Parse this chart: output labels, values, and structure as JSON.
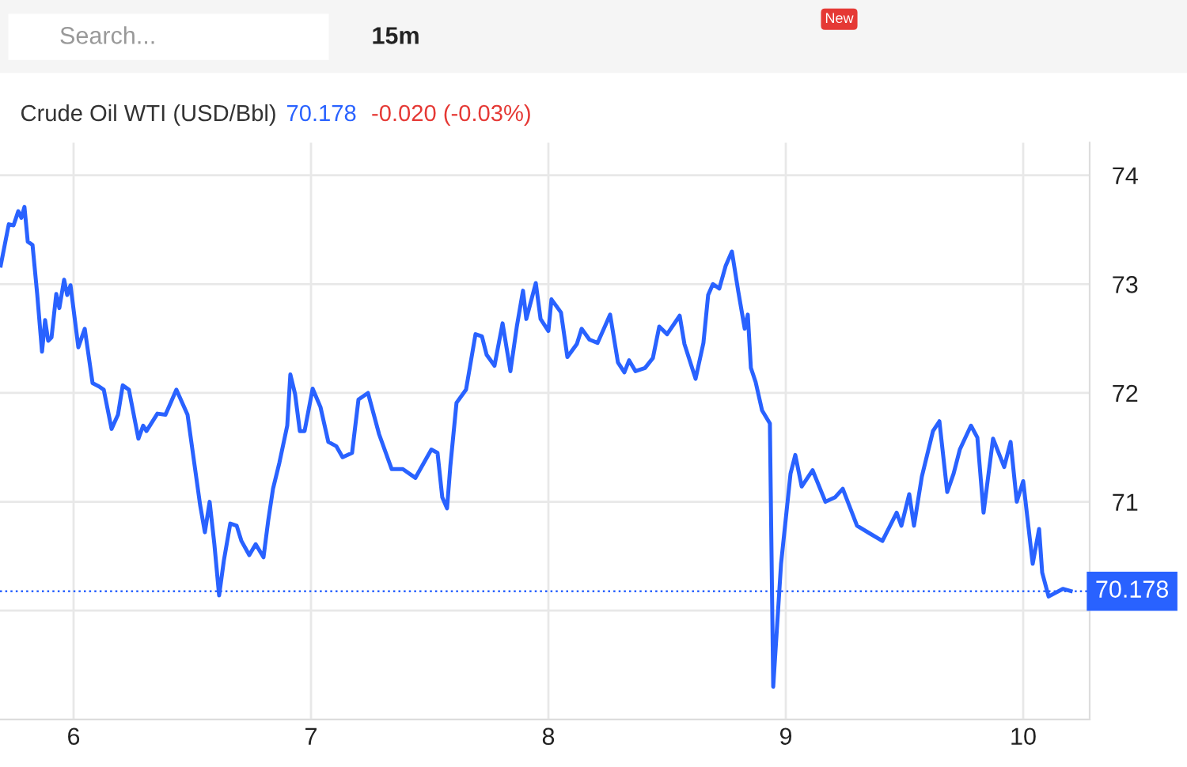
{
  "chart_data": {
    "type": "line",
    "title": "Crude Oil WTI (USD/Bbl)",
    "annotations": [
      "70.178",
      "-0.020 (-0.03%)",
      "Search...",
      "15m",
      "New"
    ],
    "series": [
      {
        "color": "#2962ff",
        "x": [
          5.693,
          5.7,
          5.727,
          5.747,
          5.767,
          5.78,
          5.793,
          5.807,
          5.827,
          5.847,
          5.867,
          5.88,
          5.893,
          5.907,
          5.927,
          5.94,
          5.96,
          5.973,
          5.987,
          6.02,
          6.047,
          6.08,
          6.107,
          6.127,
          6.16,
          6.187,
          6.207,
          6.233,
          6.273,
          6.293,
          6.307,
          6.353,
          6.387,
          6.433,
          6.48,
          6.533,
          6.553,
          6.573,
          6.593,
          6.613,
          6.633,
          6.66,
          6.687,
          6.707,
          6.74,
          6.767,
          6.8,
          6.82,
          6.84,
          6.867,
          6.9,
          6.913,
          6.933,
          6.953,
          6.973,
          7.007,
          7.04,
          7.073,
          7.107,
          7.133,
          7.173,
          7.2,
          7.24,
          7.287,
          7.34,
          7.387,
          7.44,
          7.507,
          7.533,
          7.553,
          7.573,
          7.587,
          7.613,
          7.653,
          7.693,
          7.72,
          7.74,
          7.773,
          7.807,
          7.84,
          7.867,
          7.893,
          7.907,
          7.947,
          7.967,
          8.0,
          8.013,
          8.053,
          8.08,
          8.12,
          8.14,
          8.173,
          8.207,
          8.26,
          8.293,
          8.32,
          8.34,
          8.367,
          8.407,
          8.44,
          8.467,
          8.5,
          8.553,
          8.573,
          8.62,
          8.653,
          8.673,
          8.693,
          8.72,
          8.747,
          8.773,
          8.8,
          8.827,
          8.84,
          8.853,
          8.873,
          8.9,
          8.933,
          8.947,
          8.98,
          9.02,
          9.04,
          9.067,
          9.113,
          9.167,
          9.207,
          9.24,
          9.3,
          9.353,
          9.407,
          9.467,
          9.487,
          9.52,
          9.54,
          9.573,
          9.62,
          9.647,
          9.68,
          9.707,
          9.733,
          9.78,
          9.807,
          9.833,
          9.873,
          9.92,
          9.947,
          9.973,
          10.0,
          10.04,
          10.067,
          10.08,
          10.107,
          10.167,
          10.2
        ],
        "values": [
          73.17,
          73.25,
          73.55,
          73.54,
          73.67,
          73.61,
          73.71,
          73.39,
          73.36,
          72.9,
          72.38,
          72.67,
          72.48,
          72.51,
          72.91,
          72.78,
          73.04,
          72.9,
          72.99,
          72.42,
          72.59,
          72.09,
          72.06,
          72.03,
          71.67,
          71.8,
          72.07,
          72.03,
          71.58,
          71.7,
          71.65,
          71.81,
          71.8,
          72.03,
          71.8,
          70.97,
          70.72,
          71.0,
          70.61,
          70.14,
          70.46,
          70.8,
          70.78,
          70.64,
          70.51,
          70.61,
          70.49,
          70.83,
          71.12,
          71.36,
          71.7,
          72.17,
          71.99,
          71.65,
          71.65,
          72.04,
          71.87,
          71.55,
          71.51,
          71.41,
          71.45,
          71.94,
          72.0,
          71.62,
          71.3,
          71.3,
          71.22,
          71.48,
          71.45,
          71.04,
          70.94,
          71.33,
          71.91,
          72.03,
          72.54,
          72.52,
          72.35,
          72.25,
          72.64,
          72.2,
          72.61,
          72.94,
          72.68,
          73.01,
          72.68,
          72.57,
          72.86,
          72.74,
          72.33,
          72.45,
          72.59,
          72.49,
          72.46,
          72.72,
          72.28,
          72.19,
          72.3,
          72.2,
          72.23,
          72.32,
          72.61,
          72.54,
          72.71,
          72.45,
          72.13,
          72.46,
          72.9,
          73.0,
          72.96,
          73.17,
          73.3,
          72.93,
          72.59,
          72.72,
          72.23,
          72.1,
          71.84,
          71.72,
          69.3,
          70.43,
          71.26,
          71.43,
          71.14,
          71.29,
          71.0,
          71.04,
          71.12,
          70.78,
          70.71,
          70.64,
          70.9,
          70.78,
          71.07,
          70.78,
          71.23,
          71.65,
          71.74,
          71.09,
          71.26,
          71.48,
          71.7,
          71.59,
          70.9,
          71.58,
          71.32,
          71.55,
          71.0,
          71.19,
          70.43,
          70.75,
          70.35,
          70.13,
          70.2,
          70.18
        ]
      }
    ],
    "xlim": [
      5.69,
      10.28
    ],
    "xticks": [
      6,
      7,
      8,
      9,
      10
    ],
    "ylim": [
      69.0,
      74.3
    ],
    "yticks": [
      {
        "value": 70,
        "label": null
      },
      71,
      72,
      73,
      74
    ],
    "ref_lines": [
      {
        "axis": "y",
        "value": 70.178,
        "label": "70.178",
        "color": "#2962ff",
        "line_style": "dotted"
      }
    ],
    "grid": true,
    "marker": "none",
    "line_style": "solid",
    "legend": false
  }
}
